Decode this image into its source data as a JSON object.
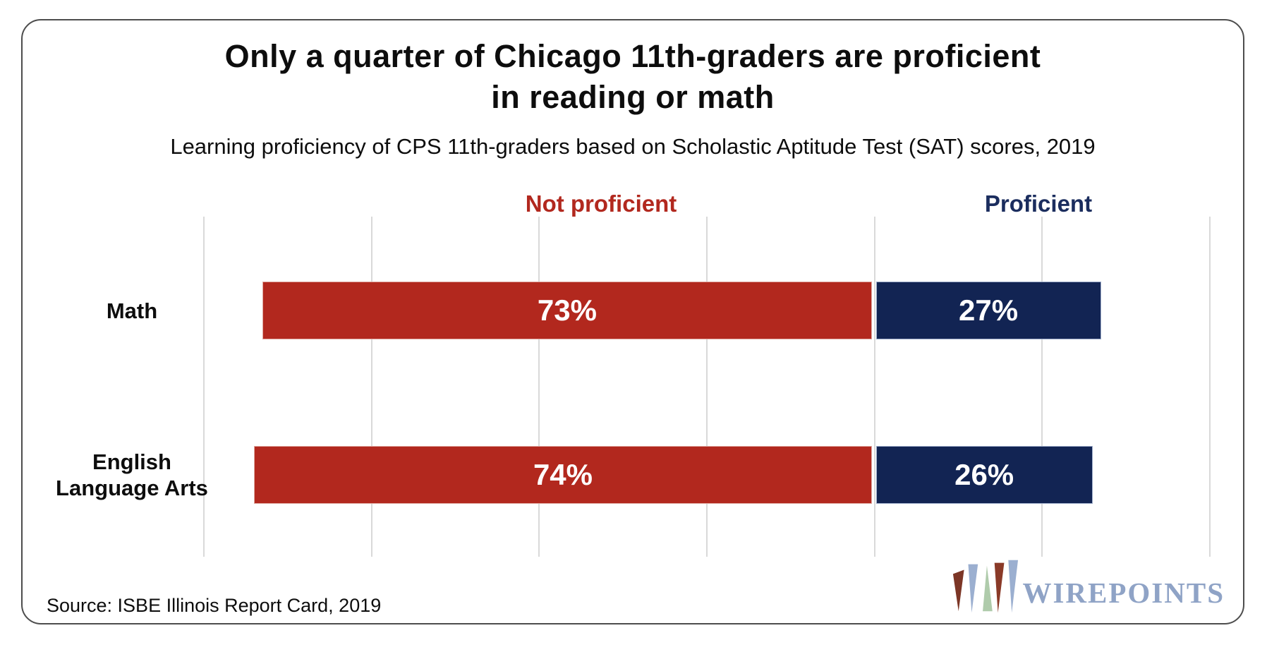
{
  "card": {
    "title_lines": [
      "Only a quarter of Chicago 11th-graders are proficient",
      "in reading or math"
    ],
    "subtitle": "Learning proficiency of CPS 11th-graders based on Scholastic Aptitude Test (SAT) scores, 2019",
    "source": "Source: ISBE Illinois Report Card, 2019"
  },
  "branding": {
    "name": "WIREPOINTS",
    "wordmark_color": "#8fa3c6",
    "mark_icon": "wirepoints-w-mark",
    "mark_colors": [
      "#7c3626",
      "#9bafd0",
      "#afcbab",
      "#8a3a28",
      "#9bafd0"
    ]
  },
  "chart_data": {
    "type": "bar",
    "orientation": "horizontal",
    "stacked": true,
    "diverging_split_at": 0,
    "title": "Only a quarter of Chicago 11th-graders are proficient in reading or math",
    "subtitle": "Learning proficiency of CPS 11th-graders based on Scholastic Aptitude Test (SAT) scores, 2019",
    "source": "Source: ISBE Illinois Report Card, 2019",
    "categories": [
      "Math",
      "English Language Arts"
    ],
    "series": [
      {
        "name": "Not proficient",
        "color": "#b2281e",
        "text_color": "#b2281e",
        "values": [
          73,
          74
        ]
      },
      {
        "name": "Proficient",
        "color": "#122453",
        "text_color": "#1b2d5e",
        "values": [
          27,
          26
        ]
      }
    ],
    "value_labels": [
      [
        "73%",
        "27%"
      ],
      [
        "74%",
        "26%"
      ]
    ],
    "axis": {
      "min": -80,
      "max": 40,
      "gridline_step": 20,
      "grid": true,
      "tick_labels_visible": false
    },
    "legend_position": "top",
    "gridline_color": "#d9d9d9"
  }
}
